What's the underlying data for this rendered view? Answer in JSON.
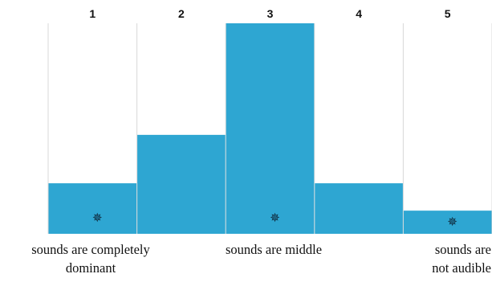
{
  "chart_data": {
    "type": "bar",
    "categories": [
      "1",
      "2",
      "3",
      "4",
      "5"
    ],
    "values": [
      24,
      47,
      100,
      24,
      11
    ],
    "ylim": [
      0,
      100
    ],
    "grid": false,
    "bar_color": "#2ea6d2",
    "grid_color": "#d8d8d8",
    "marked_categories": [
      "1",
      "3",
      "5"
    ],
    "marker_symbol": "✵",
    "annotations": [
      {
        "lines": [
          "sounds are completely",
          "dominant"
        ]
      },
      {
        "lines": [
          "sounds are middle"
        ]
      },
      {
        "lines": [
          "sounds are",
          "not audible"
        ]
      }
    ]
  }
}
